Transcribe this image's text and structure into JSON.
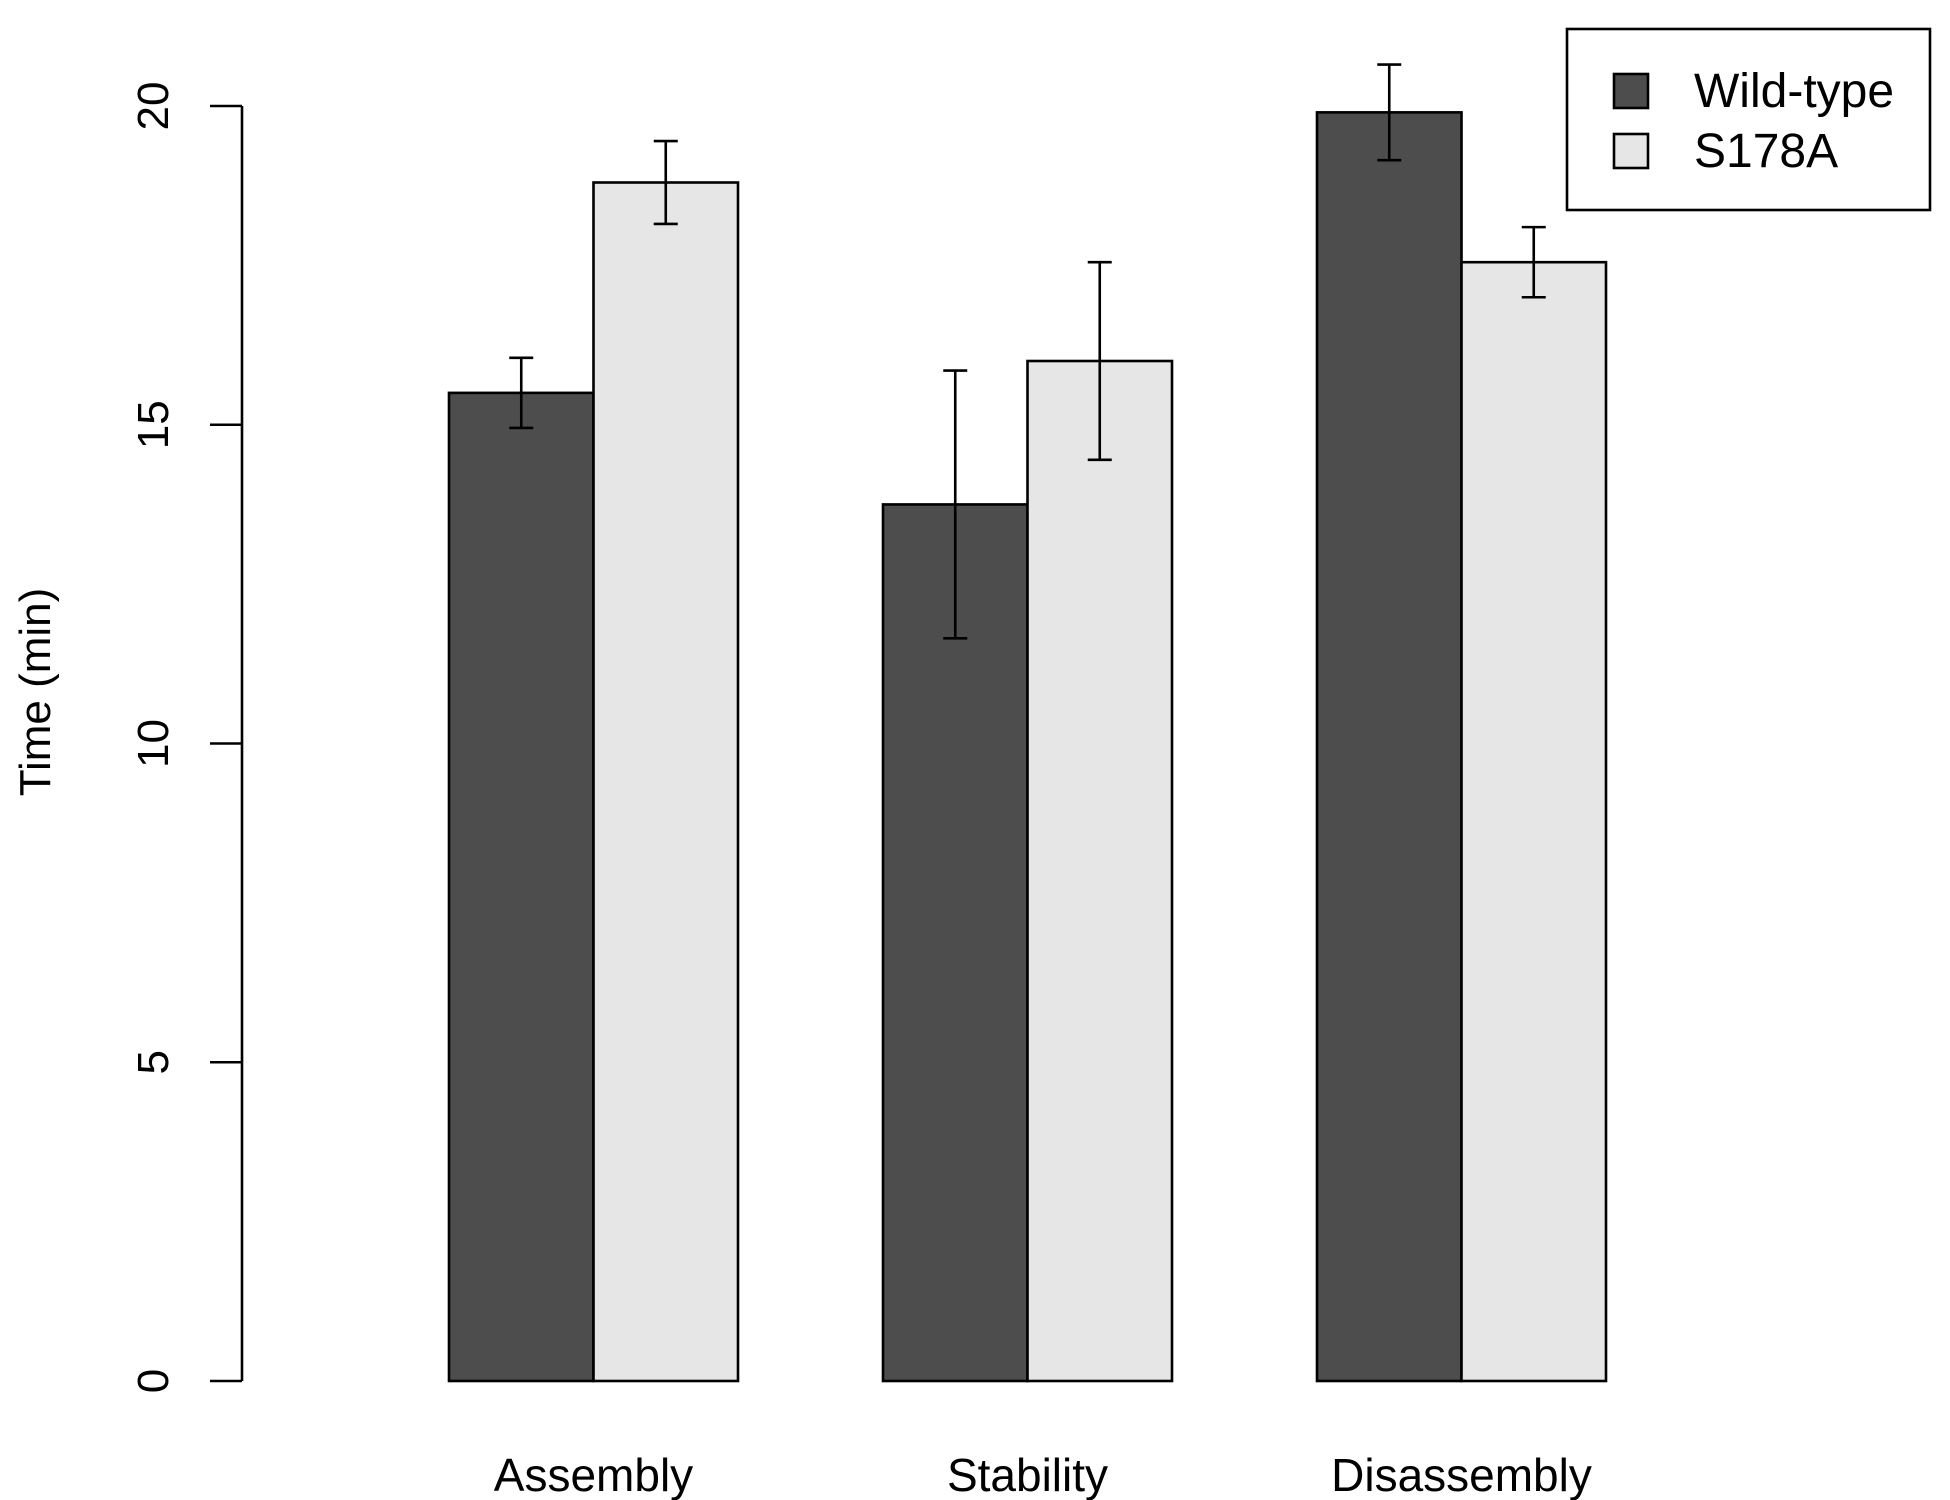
{
  "chart_data": {
    "type": "bar",
    "ylabel": "Time (min)",
    "ylim": [
      0,
      20
    ],
    "yticks": [
      0,
      5,
      10,
      15,
      20
    ],
    "categories": [
      "Assembly",
      "Stability",
      "Disassembly"
    ],
    "series": [
      {
        "name": "Wild-type",
        "color": "#4d4d4d",
        "values": [
          15.5,
          13.75,
          19.9
        ],
        "error": [
          0.55,
          2.1,
          0.75
        ]
      },
      {
        "name": "S178A",
        "color": "#e6e6e6",
        "values": [
          18.8,
          16.0,
          17.55
        ],
        "error": [
          0.65,
          1.55,
          0.55
        ]
      }
    ],
    "legend_position": "top-right",
    "grid": false,
    "error_bars": true
  }
}
